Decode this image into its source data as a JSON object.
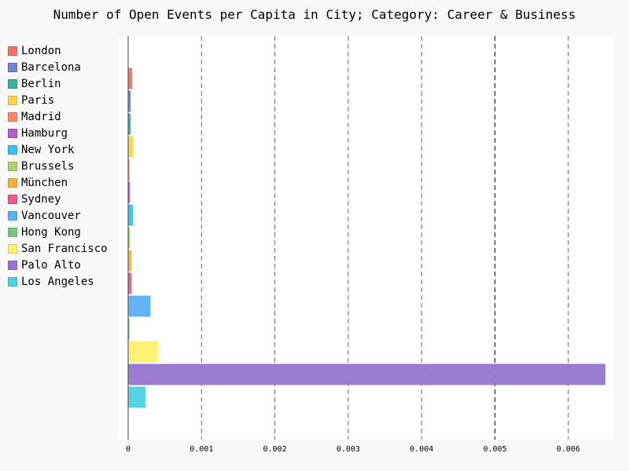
{
  "chart_data": {
    "type": "bar",
    "orientation": "horizontal",
    "title": "Number of Open Events per Capita in City; Category: Career & Business",
    "xlabel": "",
    "ylabel": "",
    "xlim": [
      0,
      0.0066
    ],
    "xticks": [
      0,
      0.001,
      0.002,
      0.003,
      0.004,
      0.005,
      0.006
    ],
    "xtick_labels": [
      "0",
      "0.001",
      "0.002",
      "0.003",
      "0.004",
      "0.005",
      "0.006"
    ],
    "grid": "vertical dashed",
    "legend_position": "left",
    "series": [
      {
        "name": "London",
        "value": 5e-05,
        "color": "#f4716d"
      },
      {
        "name": "Barcelona",
        "value": 3e-05,
        "color": "#7282cf"
      },
      {
        "name": "Berlin",
        "value": 3e-05,
        "color": "#3ab09e"
      },
      {
        "name": "Paris",
        "value": 6e-05,
        "color": "#fdd34c"
      },
      {
        "name": "Madrid",
        "value": 1e-05,
        "color": "#f98a65"
      },
      {
        "name": "Hamburg",
        "value": 2e-05,
        "color": "#b45dc5"
      },
      {
        "name": "New York",
        "value": 6e-05,
        "color": "#3bc1f2"
      },
      {
        "name": "Brussels",
        "value": 2e-05,
        "color": "#a9d16e"
      },
      {
        "name": "München",
        "value": 4e-05,
        "color": "#fbae3f"
      },
      {
        "name": "Sydney",
        "value": 4e-05,
        "color": "#ec5a8f"
      },
      {
        "name": "Vancouver",
        "value": 0.0003,
        "color": "#5cb1f6"
      },
      {
        "name": "Hong Kong",
        "value": 1e-05,
        "color": "#76c67d"
      },
      {
        "name": "San Francisco",
        "value": 0.0004,
        "color": "#fef06e"
      },
      {
        "name": "Palo Alto",
        "value": 0.0065,
        "color": "#9575cd"
      },
      {
        "name": "Los Angeles",
        "value": 0.00023,
        "color": "#4dd0e1"
      }
    ]
  }
}
